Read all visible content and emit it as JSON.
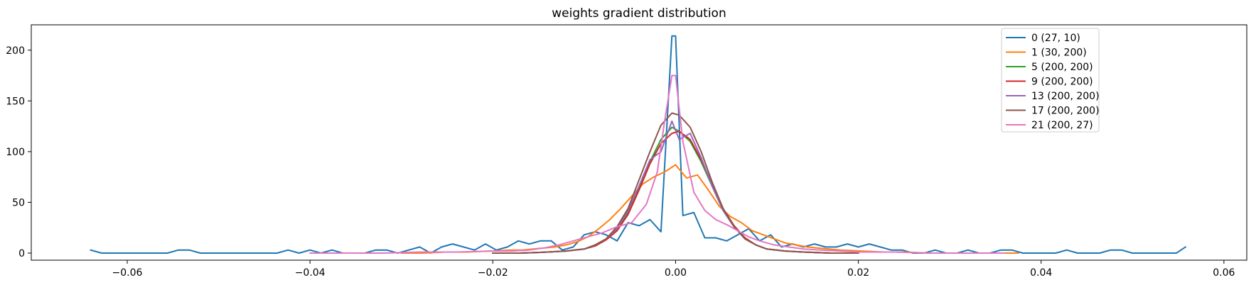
{
  "chart_data": {
    "type": "line",
    "title": "weights gradient distribution",
    "xlabel": "",
    "ylabel": "",
    "xlim": [
      -0.0705,
      0.0625
    ],
    "ylim": [
      -7,
      225
    ],
    "xticks": [
      -0.06,
      -0.04,
      -0.02,
      0.0,
      0.02,
      0.04,
      0.06
    ],
    "xtick_labels": [
      "−0.06",
      "−0.04",
      "−0.02",
      "0.00",
      "0.02",
      "0.04",
      "0.06"
    ],
    "yticks": [
      0,
      50,
      100,
      150,
      200
    ],
    "ytick_labels": [
      "0",
      "50",
      "100",
      "150",
      "200"
    ],
    "grid": false,
    "legend_position": "top-right",
    "series": [
      {
        "name": "0 (27, 10)",
        "color": "#1f77b4",
        "x": [
          -0.064,
          -0.0628,
          -0.0616,
          -0.0604,
          -0.0592,
          -0.058,
          -0.0568,
          -0.0556,
          -0.0544,
          -0.0532,
          -0.052,
          -0.0508,
          -0.0496,
          -0.0484,
          -0.0472,
          -0.046,
          -0.0448,
          -0.0436,
          -0.0424,
          -0.0412,
          -0.04,
          -0.0388,
          -0.0376,
          -0.0364,
          -0.0352,
          -0.034,
          -0.0328,
          -0.0316,
          -0.0304,
          -0.0292,
          -0.028,
          -0.0268,
          -0.0256,
          -0.0244,
          -0.0232,
          -0.022,
          -0.0208,
          -0.0196,
          -0.0184,
          -0.0172,
          -0.016,
          -0.0148,
          -0.0136,
          -0.0124,
          -0.0112,
          -0.01,
          -0.0088,
          -0.0076,
          -0.0064,
          -0.0052,
          -0.004,
          -0.0028,
          -0.0016,
          -0.0004,
          0.0,
          0.0008,
          0.002,
          0.0032,
          0.0044,
          0.0056,
          0.0068,
          0.008,
          0.0092,
          0.0104,
          0.0116,
          0.0128,
          0.014,
          0.0152,
          0.0164,
          0.0176,
          0.0188,
          0.02,
          0.0212,
          0.0224,
          0.0236,
          0.0248,
          0.026,
          0.0272,
          0.0284,
          0.0296,
          0.0308,
          0.032,
          0.0332,
          0.0344,
          0.0356,
          0.0368,
          0.038,
          0.0392,
          0.0404,
          0.0416,
          0.0428,
          0.044,
          0.0452,
          0.0464,
          0.0476,
          0.0488,
          0.05,
          0.0512,
          0.0524,
          0.0536,
          0.0548,
          0.0558
        ],
        "y": [
          3,
          0,
          0,
          0,
          0,
          0,
          0,
          0,
          3,
          3,
          0,
          0,
          0,
          0,
          0,
          0,
          0,
          0,
          3,
          0,
          3,
          0,
          3,
          0,
          0,
          0,
          3,
          3,
          0,
          3,
          6,
          0,
          6,
          9,
          6,
          3,
          9,
          3,
          6,
          12,
          9,
          12,
          12,
          3,
          6,
          18,
          21,
          18,
          12,
          30,
          27,
          33,
          21,
          214,
          214,
          37,
          40,
          15,
          15,
          12,
          18,
          24,
          12,
          18,
          6,
          9,
          6,
          9,
          6,
          6,
          9,
          6,
          9,
          6,
          3,
          3,
          0,
          0,
          3,
          0,
          0,
          3,
          0,
          0,
          3,
          3,
          0,
          0,
          0,
          0,
          3,
          0,
          0,
          0,
          3,
          3,
          0,
          0,
          0,
          0,
          0,
          6
        ]
      },
      {
        "name": "1 (30, 200)",
        "color": "#ff7f0e",
        "x": [
          -0.03,
          -0.0276,
          -0.0252,
          -0.0228,
          -0.0204,
          -0.018,
          -0.0168,
          -0.0156,
          -0.0144,
          -0.0132,
          -0.012,
          -0.0108,
          -0.0096,
          -0.0084,
          -0.0072,
          -0.006,
          -0.0048,
          -0.0036,
          -0.0024,
          -0.0012,
          0.0,
          0.0012,
          0.0024,
          0.0036,
          0.0048,
          0.006,
          0.0072,
          0.0084,
          0.0096,
          0.0108,
          0.012,
          0.0132,
          0.0144,
          0.0156,
          0.0168,
          0.018,
          0.0204,
          0.0228,
          0.0252,
          0.0276,
          0.03,
          0.0324,
          0.0348,
          0.0375
        ],
        "y": [
          0,
          0,
          1,
          1,
          2,
          3,
          3,
          4,
          5,
          6,
          8,
          11,
          16,
          24,
          33,
          44,
          56,
          68,
          75,
          80,
          87,
          74,
          77,
          62,
          46,
          36,
          30,
          22,
          18,
          14,
          10,
          8,
          6,
          5,
          4,
          3,
          2,
          1,
          1,
          0,
          0,
          0,
          0,
          0
        ]
      },
      {
        "name": "5 (200, 200)",
        "color": "#2ca02c",
        "x": [
          -0.02,
          -0.017,
          -0.014,
          -0.012,
          -0.01,
          -0.0088,
          -0.0076,
          -0.0064,
          -0.0052,
          -0.004,
          -0.0028,
          -0.0016,
          -0.0004,
          0.0004,
          0.0016,
          0.0028,
          0.004,
          0.0052,
          0.0064,
          0.0076,
          0.0088,
          0.01,
          0.012,
          0.014,
          0.017,
          0.02
        ],
        "y": [
          0,
          0,
          1,
          2,
          4,
          8,
          14,
          24,
          40,
          64,
          90,
          112,
          124,
          120,
          110,
          90,
          66,
          42,
          26,
          14,
          8,
          4,
          2,
          1,
          0,
          0
        ]
      },
      {
        "name": "9 (200, 200)",
        "color": "#d62728",
        "x": [
          -0.02,
          -0.017,
          -0.014,
          -0.012,
          -0.01,
          -0.0088,
          -0.0076,
          -0.0064,
          -0.0052,
          -0.004,
          -0.0028,
          -0.0016,
          -0.0004,
          0.0004,
          0.0016,
          0.0028,
          0.004,
          0.0052,
          0.0064,
          0.0076,
          0.0088,
          0.01,
          0.012,
          0.014,
          0.017,
          0.02
        ],
        "y": [
          0,
          0,
          1,
          2,
          4,
          7,
          13,
          22,
          38,
          62,
          88,
          108,
          118,
          120,
          112,
          92,
          68,
          44,
          27,
          15,
          8,
          4,
          2,
          1,
          0,
          0
        ]
      },
      {
        "name": "13 (200, 200)",
        "color": "#9467bd",
        "x": [
          -0.02,
          -0.017,
          -0.014,
          -0.012,
          -0.01,
          -0.0088,
          -0.0076,
          -0.0064,
          -0.0052,
          -0.004,
          -0.0028,
          -0.0016,
          -0.0004,
          0.0004,
          0.0016,
          0.0028,
          0.004,
          0.0052,
          0.0064,
          0.0076,
          0.0088,
          0.01,
          0.012,
          0.014,
          0.017,
          0.02
        ],
        "y": [
          0,
          0,
          1,
          2,
          4,
          8,
          14,
          24,
          42,
          66,
          92,
          100,
          130,
          112,
          118,
          94,
          66,
          42,
          26,
          14,
          8,
          4,
          2,
          1,
          0,
          0
        ]
      },
      {
        "name": "17 (200, 200)",
        "color": "#8c564b",
        "x": [
          -0.02,
          -0.017,
          -0.014,
          -0.012,
          -0.01,
          -0.0088,
          -0.0076,
          -0.0064,
          -0.0052,
          -0.004,
          -0.0028,
          -0.0016,
          -0.0004,
          0.0004,
          0.0016,
          0.0028,
          0.004,
          0.0052,
          0.0064,
          0.0076,
          0.0088,
          0.01,
          0.012,
          0.014,
          0.017,
          0.02
        ],
        "y": [
          0,
          0,
          1,
          2,
          4,
          8,
          14,
          26,
          44,
          72,
          100,
          126,
          138,
          136,
          124,
          100,
          70,
          44,
          26,
          14,
          8,
          4,
          2,
          1,
          0,
          0
        ]
      },
      {
        "name": "21 (200, 27)",
        "color": "#e377c2",
        "x": [
          -0.04,
          -0.036,
          -0.032,
          -0.028,
          -0.024,
          -0.02,
          -0.018,
          -0.016,
          -0.0144,
          -0.0128,
          -0.0112,
          -0.0096,
          -0.008,
          -0.0064,
          -0.0048,
          -0.0032,
          -0.002,
          -0.0012,
          -0.0004,
          0.0,
          0.0008,
          0.002,
          0.0032,
          0.0044,
          0.0056,
          0.0068,
          0.008,
          0.0092,
          0.0108,
          0.0124,
          0.014,
          0.016,
          0.018,
          0.02,
          0.024,
          0.028,
          0.032,
          0.036
        ],
        "y": [
          0,
          0,
          0,
          1,
          1,
          2,
          2,
          3,
          5,
          8,
          12,
          16,
          20,
          26,
          30,
          48,
          80,
          130,
          175,
          175,
          110,
          60,
          42,
          33,
          28,
          22,
          16,
          12,
          8,
          6,
          4,
          3,
          2,
          1,
          1,
          0,
          0,
          0
        ]
      }
    ]
  }
}
